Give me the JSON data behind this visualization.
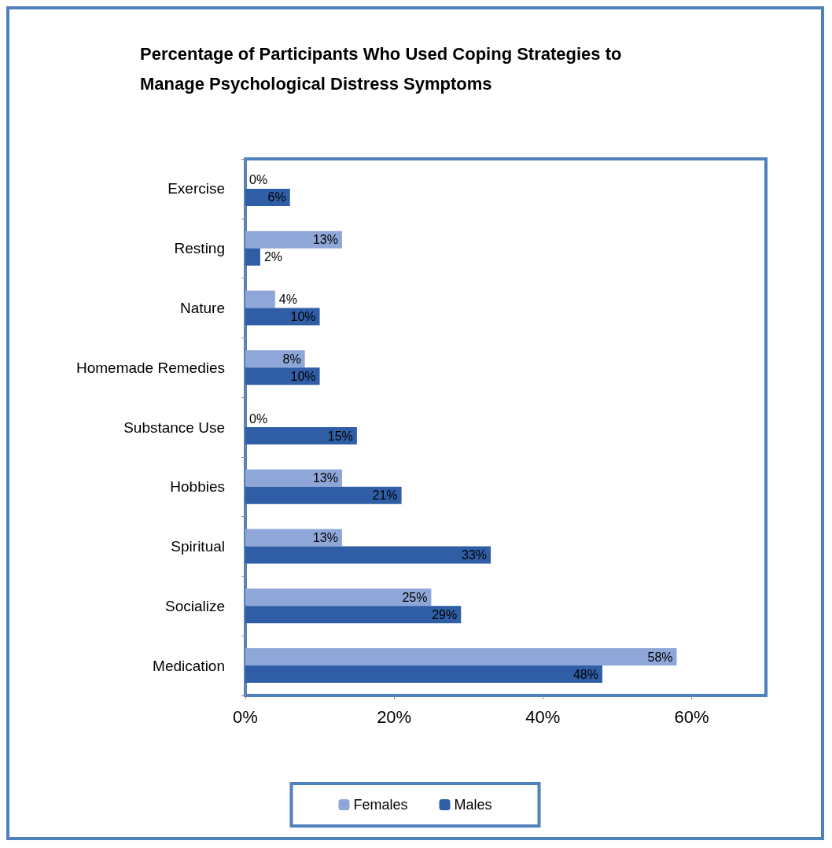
{
  "chart_data": {
    "type": "bar",
    "orientation": "horizontal",
    "title": "Percentage of Participants Who Used Coping Strategies to Manage Psychological Distress Symptoms",
    "categories": [
      "Exercise",
      "Resting",
      "Nature",
      "Homemade Remedies",
      "Substance Use",
      "Hobbies",
      "Spiritual",
      "Socialize",
      "Medication"
    ],
    "series": [
      {
        "name": "Females",
        "color": "#8ea6d8",
        "values": [
          0,
          13,
          4,
          8,
          0,
          13,
          13,
          25,
          58
        ],
        "value_labels": [
          "0%",
          "13%",
          "4%",
          "8%",
          "0%",
          "13%",
          "13%",
          "25%",
          "58%"
        ]
      },
      {
        "name": "Males",
        "color": "#2f5ea6",
        "values": [
          6,
          2,
          10,
          10,
          15,
          21,
          33,
          29,
          48
        ],
        "value_labels": [
          "6%",
          "2%",
          "10%",
          "10%",
          "15%",
          "21%",
          "33%",
          "29%",
          "48%"
        ]
      }
    ],
    "xlim": [
      0,
      70
    ],
    "xticks": [
      {
        "value": 0,
        "label": "0%"
      },
      {
        "value": 20,
        "label": "20%"
      },
      {
        "value": 40,
        "label": "40%"
      },
      {
        "value": 60,
        "label": "60%"
      }
    ],
    "grid": false,
    "legend": "bottom"
  }
}
